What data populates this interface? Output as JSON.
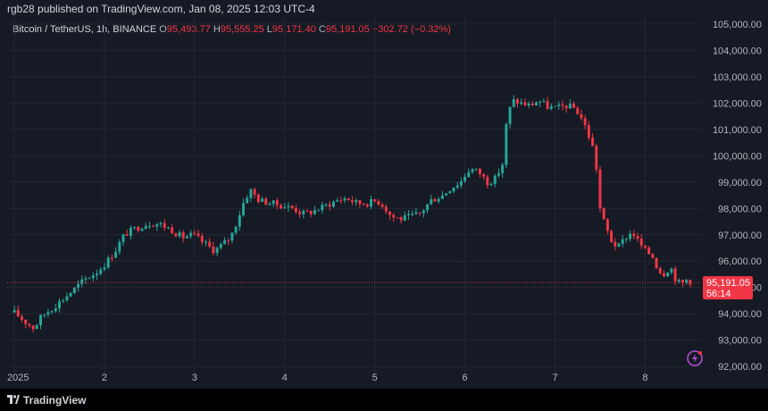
{
  "header": {
    "published": "rgb28 published on TradingView.com, Jan 08, 2025 12:03 UTC-4"
  },
  "symbol": {
    "name": "Bitcoin / TetherUS, 1h, BINANCE",
    "o_label": "O",
    "o_value": "95,493.77",
    "h_label": "H",
    "h_value": "95,555.25",
    "l_label": "L",
    "l_value": "95,171.40",
    "c_label": "C",
    "c_value": "95,191.05",
    "change": "−302.72 (−0.32%)"
  },
  "price_tag": {
    "price": "95,191.05",
    "countdown": "56:14"
  },
  "footer": {
    "brand": "TradingView"
  },
  "colors": {
    "up": "#26a69a",
    "down": "#f23645",
    "background": "#161a24",
    "axis_text": "#b2b5be"
  },
  "chart_data": {
    "type": "candlestick",
    "interval": "1h",
    "y_ticks": [
      92000,
      93000,
      94000,
      95000,
      96000,
      97000,
      98000,
      99000,
      100000,
      101000,
      102000,
      103000,
      104000,
      105000
    ],
    "y_tick_labels": [
      "92,000.00",
      "93,000.00",
      "94,000.00",
      "95,000.00",
      "96,000.00",
      "97,000.00",
      "98,000.00",
      "99,000.00",
      "100,000.00",
      "101,000.00",
      "102,000.00",
      "103,000.00",
      "104,000.00",
      "105,000.00"
    ],
    "ylim": [
      91600,
      105300
    ],
    "x_ticks": [
      {
        "label": "2025",
        "day": 1
      },
      {
        "label": "2",
        "day": 2
      },
      {
        "label": "3",
        "day": 3
      },
      {
        "label": "4",
        "day": 4
      },
      {
        "label": "5",
        "day": 5
      },
      {
        "label": "6",
        "day": 6
      },
      {
        "label": "7",
        "day": 7
      },
      {
        "label": "8",
        "day": 8
      }
    ],
    "last_price": 95191.05,
    "close_anchors": [
      [
        1.0,
        94050
      ],
      [
        1.12,
        93700
      ],
      [
        1.22,
        93450
      ],
      [
        1.3,
        93900
      ],
      [
        1.45,
        94300
      ],
      [
        1.62,
        94800
      ],
      [
        1.78,
        95300
      ],
      [
        1.92,
        95600
      ],
      [
        2.02,
        95950
      ],
      [
        2.12,
        96400
      ],
      [
        2.22,
        97000
      ],
      [
        2.32,
        97200
      ],
      [
        2.42,
        97350
      ],
      [
        2.52,
        97450
      ],
      [
        2.62,
        97400
      ],
      [
        2.74,
        97200
      ],
      [
        2.86,
        96900
      ],
      [
        2.98,
        97000
      ],
      [
        3.1,
        96700
      ],
      [
        3.22,
        96400
      ],
      [
        3.3,
        96600
      ],
      [
        3.4,
        96900
      ],
      [
        3.48,
        97600
      ],
      [
        3.55,
        98300
      ],
      [
        3.62,
        98700
      ],
      [
        3.72,
        98300
      ],
      [
        3.85,
        98200
      ],
      [
        3.98,
        98100
      ],
      [
        4.1,
        98000
      ],
      [
        4.2,
        97800
      ],
      [
        4.32,
        97900
      ],
      [
        4.45,
        98100
      ],
      [
        4.58,
        98300
      ],
      [
        4.68,
        98400
      ],
      [
        4.8,
        98200
      ],
      [
        4.92,
        98200
      ],
      [
        5.02,
        98300
      ],
      [
        5.1,
        98100
      ],
      [
        5.18,
        97700
      ],
      [
        5.3,
        97600
      ],
      [
        5.4,
        97700
      ],
      [
        5.5,
        97800
      ],
      [
        5.62,
        98300
      ],
      [
        5.75,
        98500
      ],
      [
        5.85,
        98800
      ],
      [
        5.95,
        99000
      ],
      [
        6.05,
        99500
      ],
      [
        6.15,
        99400
      ],
      [
        6.25,
        99000
      ],
      [
        6.33,
        99100
      ],
      [
        6.42,
        99700
      ],
      [
        6.46,
        101200
      ],
      [
        6.52,
        102100
      ],
      [
        6.62,
        102000
      ],
      [
        6.72,
        101900
      ],
      [
        6.82,
        102100
      ],
      [
        6.92,
        101850
      ],
      [
        7.02,
        101800
      ],
      [
        7.12,
        101900
      ],
      [
        7.22,
        101800
      ],
      [
        7.3,
        101400
      ],
      [
        7.36,
        100900
      ],
      [
        7.42,
        100300
      ],
      [
        7.47,
        99300
      ],
      [
        7.5,
        98000
      ],
      [
        7.55,
        97400
      ],
      [
        7.62,
        96800
      ],
      [
        7.7,
        96500
      ],
      [
        7.78,
        96900
      ],
      [
        7.86,
        97100
      ],
      [
        7.93,
        96700
      ],
      [
        8.0,
        96400
      ],
      [
        8.08,
        96200
      ],
      [
        8.14,
        95700
      ],
      [
        8.2,
        95500
      ],
      [
        8.28,
        95800
      ],
      [
        8.34,
        95300
      ],
      [
        8.4,
        95100
      ],
      [
        8.46,
        95300
      ],
      [
        8.52,
        95200
      ]
    ]
  }
}
